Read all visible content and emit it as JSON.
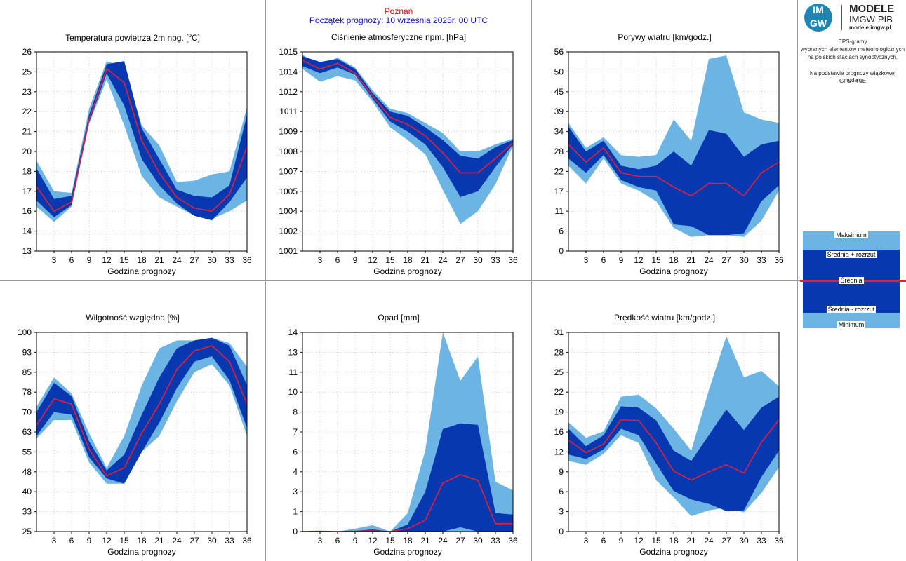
{
  "header": {
    "city": "Poznań",
    "forecast_start": "Początek prognozy: 10 września 2025r. 00 UTC"
  },
  "logo": {
    "mark_top": "IM",
    "mark_bottom": "GW",
    "name": "MODELE",
    "org": "IMGW-PIB",
    "url": "modele.imgw.pl"
  },
  "side_notes": {
    "line1": "EPS-gramy",
    "line2": "wybranych elementów meteorologicznych",
    "line3": "na polskich stacjach  synoptycznych.",
    "line4": "Na podstawie prognozy wiązkowej modelu",
    "line5": "GFS - TLE"
  },
  "legend": {
    "max": "Maksimum",
    "mean_plus": "Średnia + rozrzut",
    "mean": "Średnia",
    "mean_minus": "Średnia - rozrzut",
    "min": "Minimum"
  },
  "colors": {
    "minmax_band": "#6cb4e4",
    "spread_band": "#0738b0",
    "mean_line": "#e0203c",
    "grid": "#b0b0b0"
  },
  "chart_data": [
    {
      "type": "area",
      "title": "Temperatura powietrza 2m npg. [°C]",
      "xlabel": "Godzina prognozy",
      "x": [
        0,
        3,
        6,
        9,
        12,
        15,
        18,
        21,
        24,
        27,
        30,
        33,
        36
      ],
      "xticks": [
        "3",
        "6",
        "9",
        "12",
        "15",
        "18",
        "21",
        "24",
        "27",
        "30",
        "33",
        "36"
      ],
      "yticks": [
        "13",
        "14",
        "16",
        "17",
        "18",
        "20",
        "21",
        "22",
        "23",
        "25",
        "26"
      ],
      "ylim": [
        13,
        26
      ],
      "series": [
        {
          "name": "Maksimum",
          "values": [
            18.9,
            16.9,
            16.8,
            22.3,
            25.4,
            25.0,
            21.2,
            19.9,
            17.5,
            17.6,
            18.0,
            18.2,
            22.4
          ]
        },
        {
          "name": "Średnia + rozrzut",
          "values": [
            18.4,
            16.4,
            16.6,
            21.9,
            25.2,
            25.4,
            21.0,
            19.0,
            17.0,
            16.6,
            16.5,
            17.3,
            21.9
          ]
        },
        {
          "name": "Średnia",
          "values": [
            17.2,
            15.6,
            16.2,
            21.6,
            24.9,
            24.0,
            20.2,
            18.1,
            16.5,
            15.8,
            15.6,
            16.7,
            19.8
          ]
        },
        {
          "name": "Średnia - rozrzut",
          "values": [
            16.3,
            15.2,
            16.0,
            21.4,
            24.6,
            22.5,
            19.0,
            17.3,
            16.1,
            15.3,
            15.0,
            16.2,
            17.8
          ]
        },
        {
          "name": "Minimum",
          "values": [
            15.9,
            14.9,
            15.9,
            21.3,
            24.2,
            21.2,
            17.9,
            16.5,
            15.9,
            15.3,
            15.1,
            15.6,
            16.3
          ]
        }
      ]
    },
    {
      "type": "area",
      "title": "Ciśnienie atmosferyczne npm. [hPa]",
      "xlabel": "Godzina prognozy",
      "x": [
        0,
        3,
        6,
        9,
        12,
        15,
        18,
        21,
        24,
        27,
        30,
        33,
        36
      ],
      "xticks": [
        "3",
        "6",
        "9",
        "12",
        "15",
        "18",
        "21",
        "24",
        "27",
        "30",
        "33",
        "36"
      ],
      "yticks": [
        "1001",
        "1002",
        "1004",
        "1005",
        "1007",
        "1008",
        "1009",
        "1011",
        "1012",
        "1014",
        "1015"
      ],
      "ylim": [
        1001,
        1015
      ],
      "series": [
        {
          "name": "Maksimum",
          "values": [
            1014.8,
            1014.1,
            1014.6,
            1013.9,
            1012.3,
            1011.0,
            1010.7,
            1010.0,
            1009.3,
            1008.0,
            1008.0,
            1008.5,
            1008.9
          ]
        },
        {
          "name": "Średnia + rozrzut",
          "values": [
            1014.7,
            1014.3,
            1014.5,
            1013.8,
            1012.1,
            1010.8,
            1010.5,
            1009.7,
            1008.8,
            1007.7,
            1007.5,
            1008.3,
            1008.8
          ]
        },
        {
          "name": "Średnia",
          "values": [
            1014.4,
            1013.8,
            1014.2,
            1013.5,
            1011.9,
            1010.4,
            1009.9,
            1009.1,
            1007.9,
            1006.5,
            1006.5,
            1007.5,
            1008.6
          ]
        },
        {
          "name": "Średnia - rozrzut",
          "values": [
            1014.0,
            1013.5,
            1013.9,
            1013.4,
            1011.7,
            1010.1,
            1009.4,
            1008.5,
            1006.9,
            1004.8,
            1005.2,
            1006.9,
            1008.5
          ]
        },
        {
          "name": "Minimum",
          "values": [
            1013.8,
            1012.9,
            1013.3,
            1013.0,
            1011.5,
            1009.7,
            1008.8,
            1007.8,
            1005.3,
            1002.9,
            1003.8,
            1005.7,
            1008.4
          ]
        }
      ]
    },
    {
      "type": "area",
      "title": "Porywy wiatru [km/godz.]",
      "xlabel": "Godzina prognozy",
      "x": [
        0,
        3,
        6,
        9,
        12,
        15,
        18,
        21,
        24,
        27,
        30,
        33,
        36
      ],
      "xticks": [
        "3",
        "6",
        "9",
        "12",
        "15",
        "18",
        "21",
        "24",
        "27",
        "30",
        "33",
        "36"
      ],
      "yticks": [
        "0",
        "6",
        "11",
        "17",
        "22",
        "28",
        "34",
        "39",
        "45",
        "50",
        "56"
      ],
      "ylim": [
        0,
        56
      ],
      "series": [
        {
          "name": "Maksimum",
          "values": [
            36.0,
            29.0,
            32.0,
            27.0,
            26.5,
            27.0,
            37.0,
            31.0,
            54.0,
            55.0,
            39.0,
            37.0,
            36.0
          ]
        },
        {
          "name": "Średnia + rozrzut",
          "values": [
            35.0,
            28.0,
            31.0,
            24.0,
            23.0,
            24.0,
            28.0,
            24.0,
            34.0,
            33.0,
            26.5,
            30.0,
            31.0
          ]
        },
        {
          "name": "Średnia",
          "values": [
            30.0,
            25.0,
            29.0,
            22.0,
            21.0,
            21.0,
            18.0,
            15.5,
            19.0,
            19.0,
            15.5,
            22.0,
            25.0
          ]
        },
        {
          "name": "Średnia - rozrzut",
          "values": [
            26.0,
            22.0,
            27.0,
            20.0,
            18.0,
            17.0,
            7.5,
            7.0,
            4.5,
            4.5,
            5.0,
            14.0,
            18.5
          ]
        },
        {
          "name": "Minimum",
          "values": [
            24.0,
            19.0,
            26.0,
            19.0,
            17.0,
            14.0,
            6.5,
            4.0,
            4.5,
            4.5,
            4.0,
            8.5,
            17.0
          ]
        }
      ]
    },
    {
      "type": "area",
      "title": "Wilgotność względna [%]",
      "xlabel": "Godzina prognozy",
      "x": [
        0,
        3,
        6,
        9,
        12,
        15,
        18,
        21,
        24,
        27,
        30,
        33,
        36
      ],
      "xticks": [
        "3",
        "6",
        "9",
        "12",
        "15",
        "18",
        "21",
        "24",
        "27",
        "30",
        "33",
        "36"
      ],
      "yticks": [
        "25",
        "33",
        "40",
        "48",
        "55",
        "63",
        "70",
        "78",
        "85",
        "93",
        "100"
      ],
      "ylim": [
        25,
        100
      ],
      "series": [
        {
          "name": "Maksimum",
          "values": [
            72,
            83,
            77,
            62,
            49,
            61,
            80,
            94,
            97,
            97,
            98,
            96,
            87
          ]
        },
        {
          "name": "Średnia + rozrzut",
          "values": [
            70,
            81,
            76,
            59,
            48,
            54,
            69,
            83,
            94,
            97,
            98,
            95,
            80
          ]
        },
        {
          "name": "Średnia",
          "values": [
            65,
            75,
            73,
            56,
            46,
            49,
            62,
            73,
            86,
            93,
            95,
            89,
            73
          ]
        },
        {
          "name": "Średnia - rozrzut",
          "values": [
            61,
            70,
            69,
            53,
            45,
            43,
            55,
            66,
            79,
            89,
            91,
            82,
            64
          ]
        },
        {
          "name": "Minimum",
          "values": [
            60,
            67,
            67,
            51,
            43,
            43,
            55,
            61,
            74,
            85,
            88,
            80,
            61
          ]
        }
      ]
    },
    {
      "type": "area",
      "title": "Opad [mm]",
      "xlabel": "Godzina prognozy",
      "x": [
        0,
        3,
        6,
        9,
        12,
        15,
        18,
        21,
        24,
        27,
        30,
        33,
        36
      ],
      "xticks": [
        "3",
        "6",
        "9",
        "12",
        "15",
        "18",
        "21",
        "24",
        "27",
        "30",
        "33",
        "36"
      ],
      "yticks": [
        "0",
        "1",
        "3",
        "4",
        "6",
        "7",
        "8",
        "10",
        "11",
        "13",
        "14"
      ],
      "ylim": [
        0,
        14
      ],
      "series": [
        {
          "name": "Maksimum",
          "values": [
            0.0,
            0.05,
            0.0,
            0.2,
            0.45,
            0.0,
            1.3,
            5.7,
            14.0,
            10.6,
            12.3,
            3.5,
            2.9
          ]
        },
        {
          "name": "Średnia + rozrzut",
          "values": [
            0.0,
            0.03,
            0.0,
            0.05,
            0.15,
            0.0,
            0.5,
            2.8,
            7.2,
            7.6,
            7.5,
            1.3,
            1.2
          ]
        },
        {
          "name": "Średnia",
          "values": [
            0.0,
            0.02,
            0.0,
            0.02,
            0.05,
            0.0,
            0.2,
            0.8,
            3.4,
            4.0,
            3.6,
            0.55,
            0.55
          ]
        },
        {
          "name": "Średnia - rozrzut",
          "values": [
            0.0,
            0.0,
            0.0,
            0.0,
            0.0,
            0.0,
            0.0,
            0.0,
            0.0,
            0.3,
            0.0,
            0.0,
            0.0
          ]
        },
        {
          "name": "Minimum",
          "values": [
            0.0,
            0.0,
            0.0,
            0.0,
            0.0,
            0.0,
            0.0,
            0.0,
            0.0,
            0.0,
            0.0,
            0.0,
            0.0
          ]
        }
      ]
    },
    {
      "type": "area",
      "title": "Prędkość wiatru [km/godz.]",
      "xlabel": "Godzina prognozy",
      "x": [
        0,
        3,
        6,
        9,
        12,
        15,
        18,
        21,
        24,
        27,
        30,
        33,
        36
      ],
      "xticks": [
        "3",
        "6",
        "9",
        "12",
        "15",
        "18",
        "21",
        "24",
        "27",
        "30",
        "33",
        "36"
      ],
      "yticks": [
        "0",
        "3",
        "6",
        "9",
        "12",
        "16",
        "19",
        "22",
        "25",
        "28",
        "31"
      ],
      "ylim": [
        0,
        31
      ],
      "series": [
        {
          "name": "Maksimum",
          "values": [
            17.0,
            14.6,
            15.6,
            21.0,
            21.3,
            19.2,
            16.0,
            12.6,
            22.0,
            30.4,
            24.0,
            25.0,
            22.6
          ]
        },
        {
          "name": "Średnia + rozrzut",
          "values": [
            16.0,
            13.3,
            15.0,
            19.5,
            19.3,
            17.3,
            12.6,
            11.0,
            15.0,
            19.0,
            15.8,
            19.3,
            21.0
          ]
        },
        {
          "name": "Średnia",
          "values": [
            14.2,
            12.3,
            13.6,
            17.4,
            17.3,
            13.8,
            9.4,
            8.0,
            9.3,
            10.4,
            9.1,
            13.9,
            17.4
          ]
        },
        {
          "name": "Średnia - rozrzut",
          "values": [
            12.0,
            11.3,
            12.8,
            16.0,
            15.0,
            10.6,
            6.3,
            5.0,
            4.3,
            3.2,
            3.3,
            8.5,
            12.6
          ]
        },
        {
          "name": "Minimum",
          "values": [
            11.0,
            10.4,
            12.1,
            15.0,
            13.8,
            8.0,
            5.3,
            2.4,
            3.3,
            3.7,
            3.0,
            6.0,
            10.0
          ]
        }
      ]
    }
  ]
}
